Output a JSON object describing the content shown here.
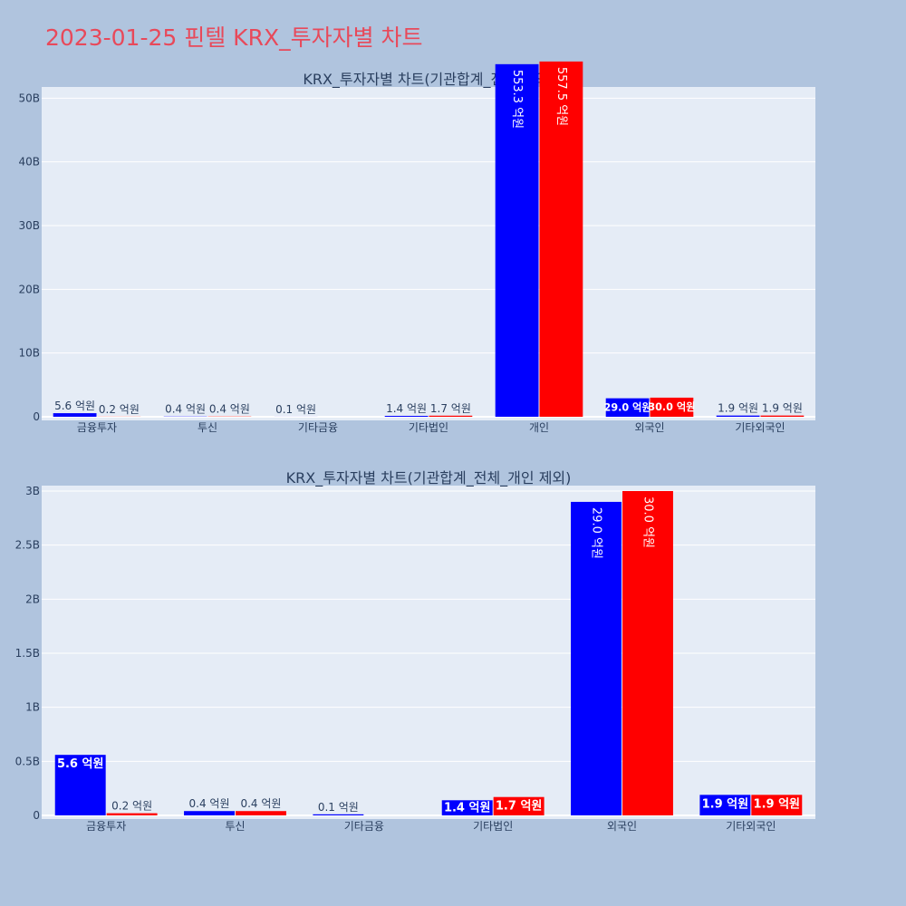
{
  "page_title": "2023-01-25 핀텔 KRX_투자자별 차트",
  "colors": {
    "background": "#b0c4de",
    "plot_bg": "#e5ecf6",
    "grid": "#ffffff",
    "title": "#e8495a",
    "text": "#2a3f5f",
    "series_a": "#0000ff",
    "series_b": "#ff0000"
  },
  "chart_data": [
    {
      "type": "bar",
      "title": "KRX_투자자별 차트(기관합계_전체 제외)",
      "categories": [
        "금융투자",
        "투신",
        "기타금융",
        "기타법인",
        "개인",
        "외국인",
        "기타외국인"
      ],
      "series": [
        {
          "color": "#0000ff",
          "values": [
            0.56,
            0.04,
            0.01,
            0.14,
            55.33,
            2.9,
            0.19
          ],
          "labels": [
            "5.6 억원",
            "0.4 억원",
            "0.1 억원",
            "1.4 억원",
            "553.3 억원",
            "29.0 억원",
            "1.9 억원"
          ]
        },
        {
          "color": "#ff0000",
          "values": [
            0.02,
            0.04,
            0.0,
            0.17,
            55.75,
            3.0,
            0.19
          ],
          "labels": [
            "0.2 억원",
            "0.4 억원",
            "",
            "1.7 억원",
            "557.5 억원",
            "30.0 억원",
            "1.9 억원"
          ]
        }
      ],
      "ylim": [
        0,
        50.9
      ],
      "yticks": [
        0,
        10,
        20,
        30,
        40,
        50
      ],
      "ytick_labels": [
        "0",
        "10B",
        "20B",
        "30B",
        "40B",
        "50B"
      ],
      "grid": true,
      "legend": "none"
    },
    {
      "type": "bar",
      "title": "KRX_투자자별 차트(기관합계_전체_개인 제외)",
      "categories": [
        "금융투자",
        "투신",
        "기타금융",
        "기타법인",
        "외국인",
        "기타외국인"
      ],
      "series": [
        {
          "color": "#0000ff",
          "values": [
            0.56,
            0.04,
            0.01,
            0.14,
            2.9,
            0.19
          ],
          "labels": [
            "5.6 억원",
            "0.4 억원",
            "0.1 억원",
            "1.4 억원",
            "29.0 억원",
            "1.9 억원"
          ]
        },
        {
          "color": "#ff0000",
          "values": [
            0.02,
            0.04,
            0.0,
            0.17,
            3.0,
            0.19
          ],
          "labels": [
            "0.2 억원",
            "0.4 억원",
            "",
            "1.7 억원",
            "30.0 억원",
            "1.9 억원"
          ]
        }
      ],
      "ylim": [
        0,
        3.0
      ],
      "yticks": [
        0,
        0.5,
        1,
        1.5,
        2,
        2.5,
        3
      ],
      "ytick_labels": [
        "0",
        "0.5B",
        "1B",
        "1.5B",
        "2B",
        "2.5B",
        "3B"
      ],
      "grid": true,
      "legend": "none"
    }
  ]
}
